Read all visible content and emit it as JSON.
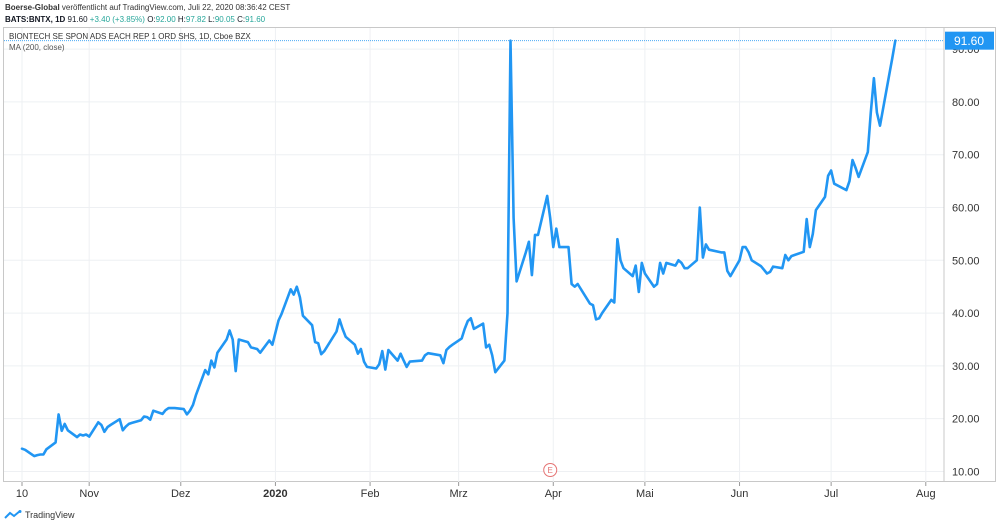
{
  "header": {
    "author": "Boerse-Global",
    "published_text": "veröffentlicht auf TradingView.com, Juli 22, 2020 08:36:42 CEST",
    "symbol": "BATS:BNTX, 1D",
    "last": "91.60",
    "change": "+3.40 (+3.85%)",
    "o_label": "O:",
    "o_value": "92.00",
    "h_label": "H:",
    "h_value": "97.82",
    "l_label": "L:",
    "l_value": "90.05",
    "c_label": "C:",
    "c_value": "91.60"
  },
  "legend": {
    "instrument": "BIONTECH SE SPON ADS EACH REP 1 ORD SHS, 1D, Cboe BZX",
    "indicator": "MA (200, close)"
  },
  "price_tag": "91.60",
  "earnings_marker": "E",
  "footer": {
    "brand": "TradingView"
  },
  "colors": {
    "line": "#2196f3",
    "grid": "#eef0f3",
    "price_tag": "#2196f3",
    "up": "#26a69a",
    "earnings": "#e57373"
  },
  "chart_data": {
    "type": "line",
    "title": "BIONTECH SE SPON ADS EACH REP 1 ORD SHS, 1D, Cboe BZX",
    "xlabel": "",
    "ylabel": "",
    "x_range": [
      "2019-10-10",
      "2020-08-05"
    ],
    "ylim": [
      8,
      94
    ],
    "yticks": [
      10,
      20,
      30,
      40,
      50,
      60,
      70,
      80,
      90
    ],
    "ytick_labels": [
      "10.00",
      "20.00",
      "30.00",
      "40.00",
      "50.00",
      "60.00",
      "70.00",
      "80.00",
      "90.00"
    ],
    "xticks": [
      {
        "date": "2019-10-10",
        "label": "10"
      },
      {
        "date": "2019-11-01",
        "label": "Nov"
      },
      {
        "date": "2019-12-01",
        "label": "Dez"
      },
      {
        "date": "2020-01-01",
        "label": "2020"
      },
      {
        "date": "2020-02-01",
        "label": "Feb"
      },
      {
        "date": "2020-03-01",
        "label": "Mrz"
      },
      {
        "date": "2020-04-01",
        "label": "Apr"
      },
      {
        "date": "2020-05-01",
        "label": "Mai"
      },
      {
        "date": "2020-06-01",
        "label": "Jun"
      },
      {
        "date": "2020-07-01",
        "label": "Jul"
      },
      {
        "date": "2020-08-01",
        "label": "Aug"
      }
    ],
    "earnings_date": "2020-03-31",
    "grid": true,
    "series": [
      {
        "points": [
          [
            "2019-10-10",
            14.3
          ],
          [
            "2019-10-11",
            14.1
          ],
          [
            "2019-10-14",
            12.9
          ],
          [
            "2019-10-15",
            13.1
          ],
          [
            "2019-10-16",
            13.2
          ],
          [
            "2019-10-17",
            13.2
          ],
          [
            "2019-10-18",
            14.2
          ],
          [
            "2019-10-21",
            15.5
          ],
          [
            "2019-10-22",
            20.8
          ],
          [
            "2019-10-23",
            17.7
          ],
          [
            "2019-10-24",
            19.0
          ],
          [
            "2019-10-25",
            17.8
          ],
          [
            "2019-10-28",
            16.5
          ],
          [
            "2019-10-29",
            17.0
          ],
          [
            "2019-10-30",
            16.8
          ],
          [
            "2019-10-31",
            17.0
          ],
          [
            "2019-11-01",
            16.6
          ],
          [
            "2019-11-04",
            19.3
          ],
          [
            "2019-11-05",
            18.8
          ],
          [
            "2019-11-06",
            17.5
          ],
          [
            "2019-11-07",
            18.4
          ],
          [
            "2019-11-08",
            18.8
          ],
          [
            "2019-11-11",
            19.9
          ],
          [
            "2019-11-12",
            17.8
          ],
          [
            "2019-11-13",
            18.5
          ],
          [
            "2019-11-14",
            19.0
          ],
          [
            "2019-11-15",
            19.2
          ],
          [
            "2019-11-18",
            19.7
          ],
          [
            "2019-11-19",
            20.4
          ],
          [
            "2019-11-20",
            20.3
          ],
          [
            "2019-11-21",
            19.8
          ],
          [
            "2019-11-22",
            21.5
          ],
          [
            "2019-11-25",
            20.9
          ],
          [
            "2019-11-26",
            21.6
          ],
          [
            "2019-11-27",
            22.0
          ],
          [
            "2019-11-29",
            22.0
          ],
          [
            "2019-12-02",
            21.8
          ],
          [
            "2019-12-03",
            20.8
          ],
          [
            "2019-12-04",
            21.5
          ],
          [
            "2019-12-05",
            22.6
          ],
          [
            "2019-12-06",
            24.5
          ],
          [
            "2019-12-09",
            29.2
          ],
          [
            "2019-12-10",
            28.4
          ],
          [
            "2019-12-11",
            31.0
          ],
          [
            "2019-12-12",
            29.7
          ],
          [
            "2019-12-13",
            32.5
          ],
          [
            "2019-12-16",
            35.0
          ],
          [
            "2019-12-17",
            36.7
          ],
          [
            "2019-12-18",
            35.0
          ],
          [
            "2019-12-19",
            29.0
          ],
          [
            "2019-12-20",
            35.0
          ],
          [
            "2019-12-23",
            34.5
          ],
          [
            "2019-12-24",
            33.5
          ],
          [
            "2019-12-26",
            33.2
          ],
          [
            "2019-12-27",
            32.5
          ],
          [
            "2019-12-30",
            34.8
          ],
          [
            "2019-12-31",
            34.0
          ],
          [
            "2020-01-02",
            38.6
          ],
          [
            "2020-01-03",
            39.8
          ],
          [
            "2020-01-06",
            44.5
          ],
          [
            "2020-01-07",
            43.5
          ],
          [
            "2020-01-08",
            45.0
          ],
          [
            "2020-01-09",
            43.0
          ],
          [
            "2020-01-10",
            39.5
          ],
          [
            "2020-01-13",
            37.7
          ],
          [
            "2020-01-14",
            34.5
          ],
          [
            "2020-01-15",
            34.3
          ],
          [
            "2020-01-16",
            32.2
          ],
          [
            "2020-01-17",
            32.8
          ],
          [
            "2020-01-21",
            36.5
          ],
          [
            "2020-01-22",
            38.8
          ],
          [
            "2020-01-23",
            37.0
          ],
          [
            "2020-01-24",
            35.5
          ],
          [
            "2020-01-27",
            34.0
          ],
          [
            "2020-01-28",
            32.3
          ],
          [
            "2020-01-29",
            33.2
          ],
          [
            "2020-01-30",
            30.8
          ],
          [
            "2020-01-31",
            29.8
          ],
          [
            "2020-02-03",
            29.5
          ],
          [
            "2020-02-04",
            30.3
          ],
          [
            "2020-02-05",
            32.8
          ],
          [
            "2020-02-06",
            29.3
          ],
          [
            "2020-02-07",
            33.0
          ],
          [
            "2020-02-10",
            31.0
          ],
          [
            "2020-02-11",
            32.3
          ],
          [
            "2020-02-12",
            31.0
          ],
          [
            "2020-02-13",
            29.8
          ],
          [
            "2020-02-14",
            30.8
          ],
          [
            "2020-02-18",
            31.0
          ],
          [
            "2020-02-19",
            32.0
          ],
          [
            "2020-02-20",
            32.4
          ],
          [
            "2020-02-21",
            32.3
          ],
          [
            "2020-02-24",
            32.0
          ],
          [
            "2020-02-25",
            30.5
          ],
          [
            "2020-02-26",
            33.0
          ],
          [
            "2020-02-27",
            33.6
          ],
          [
            "2020-02-28",
            34.0
          ],
          [
            "2020-03-02",
            35.2
          ],
          [
            "2020-03-03",
            37.0
          ],
          [
            "2020-03-04",
            38.5
          ],
          [
            "2020-03-05",
            39.0
          ],
          [
            "2020-03-06",
            37.0
          ],
          [
            "2020-03-09",
            38.0
          ],
          [
            "2020-03-10",
            33.5
          ],
          [
            "2020-03-11",
            34.0
          ],
          [
            "2020-03-12",
            32.0
          ],
          [
            "2020-03-13",
            28.8
          ],
          [
            "2020-03-16",
            31.0
          ],
          [
            "2020-03-17",
            40.0
          ],
          [
            "2020-03-18",
            91.6
          ],
          [
            "2020-03-19",
            58.0
          ],
          [
            "2020-03-20",
            46.0
          ],
          [
            "2020-03-23",
            51.5
          ],
          [
            "2020-03-24",
            53.5
          ],
          [
            "2020-03-25",
            47.2
          ],
          [
            "2020-03-26",
            54.8
          ],
          [
            "2020-03-27",
            54.8
          ],
          [
            "2020-03-30",
            62.2
          ],
          [
            "2020-03-31",
            58.0
          ],
          [
            "2020-04-01",
            52.5
          ],
          [
            "2020-04-02",
            56.0
          ],
          [
            "2020-04-03",
            52.5
          ],
          [
            "2020-04-06",
            52.5
          ],
          [
            "2020-04-07",
            45.5
          ],
          [
            "2020-04-08",
            45.0
          ],
          [
            "2020-04-09",
            45.5
          ],
          [
            "2020-04-13",
            41.8
          ],
          [
            "2020-04-14",
            41.5
          ],
          [
            "2020-04-15",
            38.8
          ],
          [
            "2020-04-16",
            39.0
          ],
          [
            "2020-04-17",
            40.0
          ],
          [
            "2020-04-20",
            42.5
          ],
          [
            "2020-04-21",
            42.0
          ],
          [
            "2020-04-22",
            54.0
          ],
          [
            "2020-04-23",
            50.0
          ],
          [
            "2020-04-24",
            48.5
          ],
          [
            "2020-04-27",
            47.0
          ],
          [
            "2020-04-28",
            49.0
          ],
          [
            "2020-04-29",
            44.0
          ],
          [
            "2020-04-30",
            49.5
          ],
          [
            "2020-05-01",
            47.5
          ],
          [
            "2020-05-04",
            45.0
          ],
          [
            "2020-05-05",
            45.5
          ],
          [
            "2020-05-06",
            49.5
          ],
          [
            "2020-05-07",
            47.5
          ],
          [
            "2020-05-08",
            49.5
          ],
          [
            "2020-05-11",
            49.0
          ],
          [
            "2020-05-12",
            50.0
          ],
          [
            "2020-05-13",
            49.5
          ],
          [
            "2020-05-14",
            48.5
          ],
          [
            "2020-05-15",
            48.5
          ],
          [
            "2020-05-18",
            50.0
          ],
          [
            "2020-05-19",
            60.0
          ],
          [
            "2020-05-20",
            50.5
          ],
          [
            "2020-05-21",
            53.0
          ],
          [
            "2020-05-22",
            52.0
          ],
          [
            "2020-05-26",
            51.5
          ],
          [
            "2020-05-27",
            51.5
          ],
          [
            "2020-05-28",
            48.0
          ],
          [
            "2020-05-29",
            47.0
          ],
          [
            "2020-06-01",
            50.0
          ],
          [
            "2020-06-02",
            52.5
          ],
          [
            "2020-06-03",
            52.5
          ],
          [
            "2020-06-04",
            51.5
          ],
          [
            "2020-06-05",
            50.0
          ],
          [
            "2020-06-08",
            48.9
          ],
          [
            "2020-06-09",
            48.2
          ],
          [
            "2020-06-10",
            47.5
          ],
          [
            "2020-06-11",
            47.8
          ],
          [
            "2020-06-12",
            48.8
          ],
          [
            "2020-06-15",
            48.5
          ],
          [
            "2020-06-16",
            51.0
          ],
          [
            "2020-06-17",
            50.0
          ],
          [
            "2020-06-18",
            50.8
          ],
          [
            "2020-06-19",
            51.0
          ],
          [
            "2020-06-22",
            51.6
          ],
          [
            "2020-06-23",
            57.8
          ],
          [
            "2020-06-24",
            52.5
          ],
          [
            "2020-06-25",
            55.0
          ],
          [
            "2020-06-26",
            59.5
          ],
          [
            "2020-06-29",
            62.0
          ],
          [
            "2020-06-30",
            66.0
          ],
          [
            "2020-07-01",
            67.0
          ],
          [
            "2020-07-02",
            64.5
          ],
          [
            "2020-07-06",
            63.3
          ],
          [
            "2020-07-07",
            65.0
          ],
          [
            "2020-07-08",
            69.0
          ],
          [
            "2020-07-09",
            67.5
          ],
          [
            "2020-07-10",
            65.8
          ],
          [
            "2020-07-13",
            70.5
          ],
          [
            "2020-07-14",
            78.0
          ],
          [
            "2020-07-15",
            84.5
          ],
          [
            "2020-07-16",
            78.0
          ],
          [
            "2020-07-17",
            75.5
          ],
          [
            "2020-07-20",
            85.0
          ],
          [
            "2020-07-21",
            88.2
          ],
          [
            "2020-07-22",
            91.6
          ]
        ]
      }
    ]
  }
}
